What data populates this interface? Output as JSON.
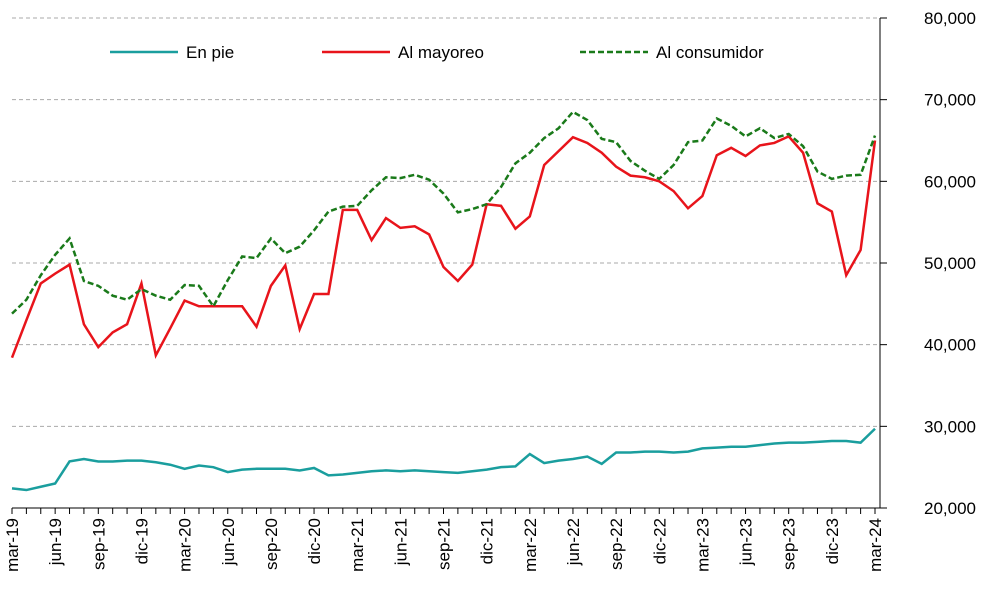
{
  "chart_data": {
    "type": "line",
    "categories": [
      "mar-19",
      null,
      null,
      "jun-19",
      null,
      null,
      "sep-19",
      null,
      null,
      "dic-19",
      null,
      null,
      "mar-20",
      null,
      null,
      "jun-20",
      null,
      null,
      "sep-20",
      null,
      null,
      "dic-20",
      null,
      null,
      "mar-21",
      null,
      null,
      "jun-21",
      null,
      null,
      "sep-21",
      null,
      null,
      "dic-21",
      null,
      null,
      "mar-22",
      null,
      null,
      "jun-22",
      null,
      null,
      "sep-22",
      null,
      null,
      "dic-22",
      null,
      null,
      "mar-23",
      null,
      null,
      "jun-23",
      null,
      null,
      "sep-23",
      null,
      null,
      "dic-23",
      null,
      null,
      "mar-24"
    ],
    "series": [
      {
        "name": "En pie",
        "color": "#1a9e9e",
        "dash": false,
        "values": [
          22400,
          22200,
          22600,
          23000,
          25700,
          26000,
          25700,
          25700,
          25800,
          25800,
          25600,
          25300,
          24800,
          25200,
          25000,
          24400,
          24700,
          24800,
          24800,
          24800,
          24600,
          24900,
          24000,
          24100,
          24300,
          24500,
          24600,
          24500,
          24600,
          24500,
          24400,
          24300,
          24500,
          24700,
          25000,
          25100,
          26600,
          25500,
          25800,
          26000,
          26300,
          25400,
          26800,
          26800,
          26900,
          26900,
          26800,
          26900,
          27300,
          27400,
          27500,
          27500,
          27700,
          27900,
          28000,
          28000,
          28100,
          28200,
          28200,
          28000,
          29700
        ]
      },
      {
        "name": "Al mayoreo",
        "color": "#e8141b",
        "dash": false,
        "values": [
          38400,
          43000,
          47500,
          48700,
          49800,
          42500,
          39700,
          41500,
          42500,
          47500,
          38700,
          42000,
          45400,
          44700,
          44700,
          44700,
          44700,
          42200,
          47200,
          49700,
          41900,
          46200,
          46200,
          56500,
          56500,
          52800,
          55500,
          54300,
          54500,
          53500,
          49500,
          47800,
          49800,
          57200,
          57000,
          54200,
          55700,
          62000,
          63700,
          65400,
          64700,
          63500,
          61800,
          60700,
          60500,
          60000,
          58800,
          56700,
          58200,
          63200,
          64100,
          63100,
          64400,
          64700,
          65500,
          63500,
          57300,
          56300,
          48500,
          51600,
          65000
        ]
      },
      {
        "name": "Al consumidor",
        "color": "#1a7a1a",
        "dash": true,
        "values": [
          43800,
          45500,
          48500,
          51000,
          53000,
          47800,
          47200,
          46000,
          45500,
          46800,
          46000,
          45500,
          47300,
          47200,
          44700,
          47900,
          50800,
          50600,
          53000,
          51200,
          52000,
          54000,
          56300,
          56900,
          57000,
          58900,
          60500,
          60400,
          60800,
          60200,
          58500,
          56200,
          56600,
          57200,
          59300,
          62200,
          63500,
          65300,
          66500,
          68500,
          67500,
          65200,
          64800,
          62500,
          61300,
          60300,
          62000,
          64800,
          65000,
          67700,
          66800,
          65500,
          66500,
          65300,
          65800,
          64300,
          61200,
          60300,
          60700,
          60800,
          65600
        ]
      }
    ],
    "ylim": [
      20000,
      80000
    ],
    "yticks": [
      {
        "value": 20000,
        "label": "20,000"
      },
      {
        "value": 30000,
        "label": "30,000"
      },
      {
        "value": 40000,
        "label": "40,000"
      },
      {
        "value": 50000,
        "label": "50,000"
      },
      {
        "value": 60000,
        "label": "60,000"
      },
      {
        "value": 70000,
        "label": "70,000"
      },
      {
        "value": 80000,
        "label": "80,000"
      }
    ],
    "grid": true,
    "legend": "top"
  }
}
